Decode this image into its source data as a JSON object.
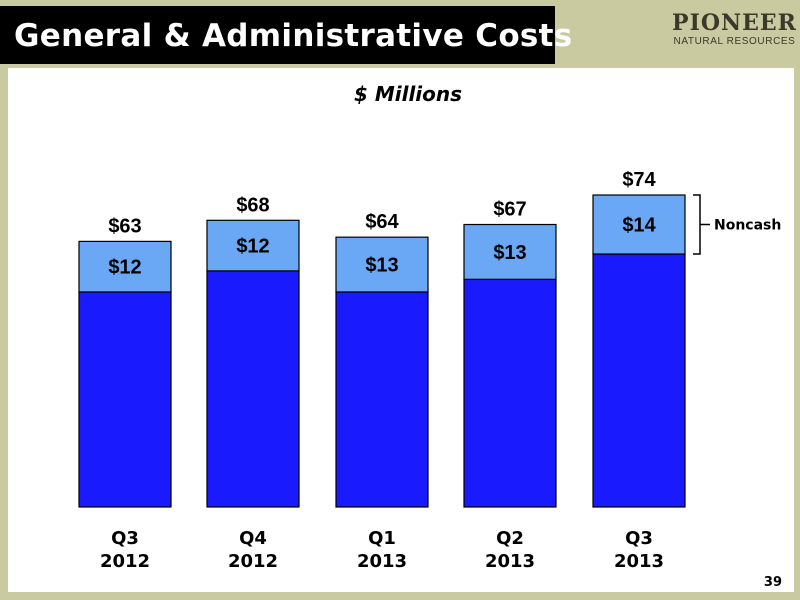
{
  "slide": {
    "title": "General & Administrative Costs",
    "logo_main": "PIONEER",
    "logo_sub": "NATURAL RESOURCES",
    "page_number": "39"
  },
  "colors": {
    "cash_bar": "#1a1aff",
    "noncash_bar": "#6aa7f5",
    "bar_stroke": "#000000",
    "title_bar": "#000000",
    "frame": "#c9caa0"
  },
  "chart_data": {
    "type": "bar",
    "stacked": true,
    "title": "$ Millions",
    "categories": [
      [
        "Q3",
        "2012"
      ],
      [
        "Q4",
        "2012"
      ],
      [
        "Q1",
        "2013"
      ],
      [
        "Q2",
        "2013"
      ],
      [
        "Q3",
        "2013"
      ]
    ],
    "series": [
      {
        "values": [
          51,
          56,
          51,
          54,
          60
        ]
      },
      {
        "name": "Noncash",
        "values": [
          12,
          12,
          13,
          13,
          14
        ]
      }
    ],
    "totals": [
      63,
      68,
      64,
      67,
      74
    ],
    "total_labels": [
      "$63",
      "$68",
      "$64",
      "$67",
      "$74"
    ],
    "segment_labels": [
      "$12",
      "$12",
      "$13",
      "$13",
      "$14"
    ],
    "legend": {
      "label": "Noncash",
      "placement": "right, bracket on last bar"
    },
    "ylim": [
      0,
      74
    ],
    "grid": false
  }
}
